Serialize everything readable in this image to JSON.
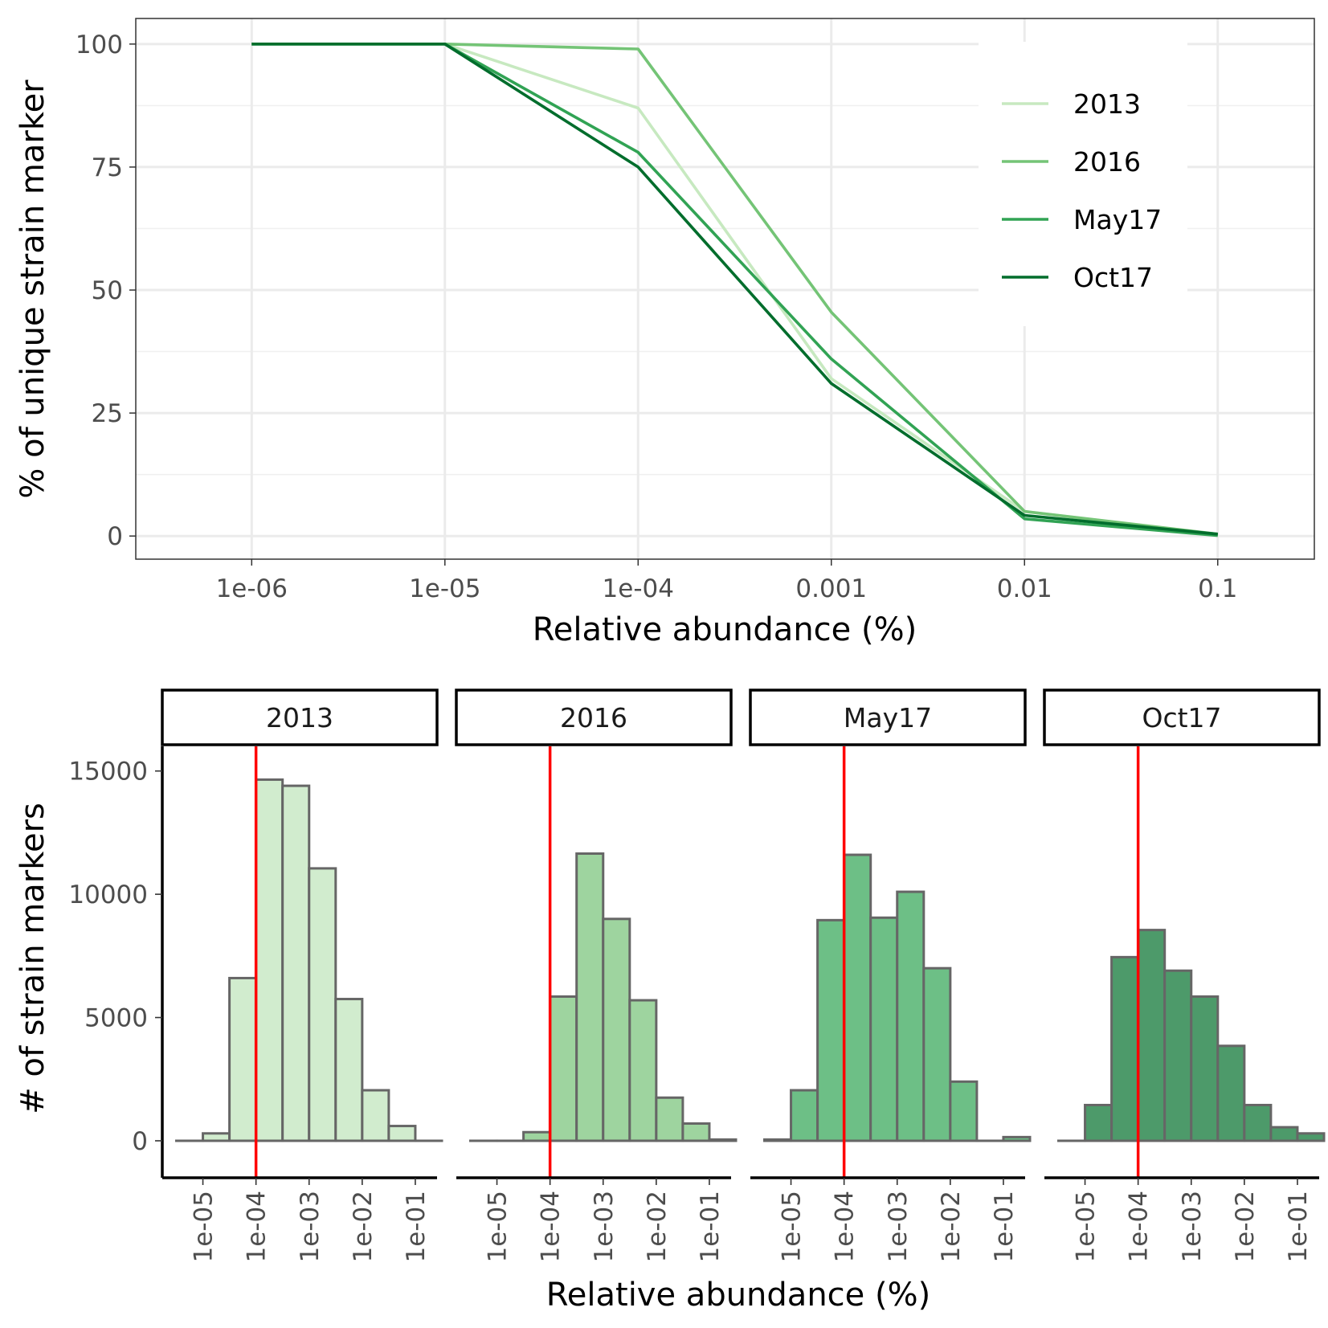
{
  "chart_data": [
    {
      "type": "line",
      "title": "",
      "xlabel": "Relative abundance (%)",
      "ylabel": "% of unique strain marker",
      "x_scale": "log10",
      "x_ticks": [
        "1e-06",
        "1e-05",
        "1e-04",
        "0.001",
        "0.01",
        "0.1"
      ],
      "x": [
        1e-06,
        1e-05,
        0.0001,
        0.001,
        0.01,
        0.1
      ],
      "ylim": [
        0,
        100
      ],
      "y_ticks": [
        "0",
        "25",
        "50",
        "75",
        "100"
      ],
      "grid": true,
      "legend_position": "top-right",
      "series": [
        {
          "name": "2013",
          "color": "#c7e9c0",
          "values": [
            100,
            100,
            87,
            32,
            5,
            0.3
          ]
        },
        {
          "name": "2016",
          "color": "#74c476",
          "values": [
            100,
            100,
            99,
            45.5,
            5,
            0.4
          ]
        },
        {
          "name": "May17",
          "color": "#31a354",
          "values": [
            100,
            100,
            78,
            36,
            3.5,
            0.1
          ]
        },
        {
          "name": "Oct17",
          "color": "#006d2c",
          "values": [
            100,
            100,
            75,
            31,
            4.2,
            0.4
          ]
        }
      ]
    },
    {
      "type": "bar",
      "subtype": "faceted-histogram",
      "title": "",
      "xlabel": "Relative abundance (%)",
      "ylabel": "# of strain markers",
      "x_scale": "log10",
      "x_ticks": [
        "1e-05",
        "1e-04",
        "1e-03",
        "1e-02",
        "1e-01"
      ],
      "ylim": [
        0,
        15000
      ],
      "y_ticks": [
        "0",
        "5000",
        "10000",
        "15000"
      ],
      "bin_width_log10": 0.5,
      "first_bin_center_log10": -5.25,
      "reference_line_x": 0.0001,
      "reference_line_color": "#ff0000",
      "grid": false,
      "panels": [
        {
          "label": "2013",
          "color": "#d1ecce",
          "counts": [
            0,
            300,
            6600,
            14650,
            14400,
            11050,
            5750,
            2050,
            600,
            0
          ]
        },
        {
          "label": "2016",
          "color": "#9ed49f",
          "counts": [
            0,
            0,
            350,
            5850,
            11650,
            9000,
            5700,
            1750,
            700,
            50
          ]
        },
        {
          "label": "May17",
          "color": "#6dbf86",
          "counts": [
            50,
            2050,
            8950,
            11600,
            9050,
            10100,
            7000,
            2400,
            0,
            150
          ]
        },
        {
          "label": "Oct17",
          "color": "#4d9a6a",
          "counts": [
            0,
            1450,
            7450,
            8550,
            6900,
            5850,
            3850,
            1450,
            550,
            300
          ]
        }
      ]
    }
  ]
}
